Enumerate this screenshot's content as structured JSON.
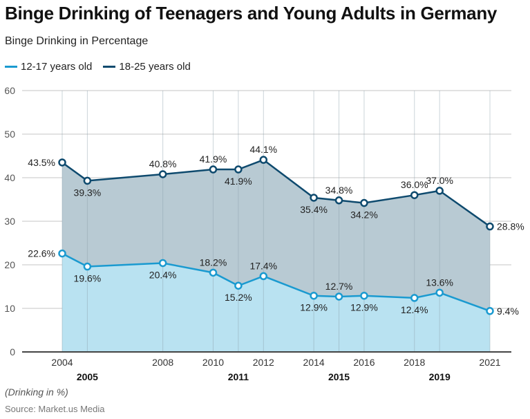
{
  "title": "Binge Drinking of Teenagers and Young Adults in Germany",
  "subtitle": "Binge Drinking in Percentage",
  "note": "(Drinking in %)",
  "source": "Source: Market.us Media",
  "chart_data": {
    "type": "area",
    "title": "Binge Drinking of Teenagers and Young Adults in Germany",
    "subtitle": "Binge Drinking in Percentage",
    "xlabel": "",
    "ylabel": "",
    "x": [
      2004,
      2005,
      2008,
      2010,
      2011,
      2012,
      2014,
      2015,
      2016,
      2018,
      2019,
      2021
    ],
    "x_tick_labels_row1": [
      "2004",
      "2008",
      "2010",
      "2012",
      "2014",
      "2016",
      "2018",
      "2021"
    ],
    "x_tick_labels_row2": [
      "2005",
      "2011",
      "2015",
      "2019"
    ],
    "y_ticks": [
      0,
      10,
      20,
      30,
      40,
      50,
      60
    ],
    "ylim": [
      0,
      60
    ],
    "grid": true,
    "legend_position": "top-left",
    "series": [
      {
        "name": "12-17 years old",
        "color": "#1a9ad0",
        "fill": "#b9e2f1",
        "values": [
          22.6,
          19.6,
          20.4,
          18.2,
          15.2,
          17.4,
          12.9,
          12.7,
          12.9,
          12.4,
          13.6,
          9.4
        ],
        "labels": [
          "22.6%",
          "19.6%",
          "20.4%",
          "18.2%",
          "15.2%",
          "17.4%",
          "12.9%",
          "12.7%",
          "12.9%",
          "12.4%",
          "13.6%",
          "9.4%"
        ]
      },
      {
        "name": "18-25 years old",
        "color": "#0e4a6e",
        "fill": "#b8cad3",
        "values": [
          43.5,
          39.3,
          40.8,
          41.9,
          41.9,
          44.1,
          35.4,
          34.8,
          34.2,
          36.0,
          37.0,
          28.8
        ],
        "labels": [
          "43.5%",
          "39.3%",
          "40.8%",
          "41.9%",
          "41.9%",
          "44.1%",
          "35.4%",
          "34.8%",
          "34.2%",
          "36.0%",
          "37.0%",
          "28.8%"
        ]
      }
    ]
  }
}
